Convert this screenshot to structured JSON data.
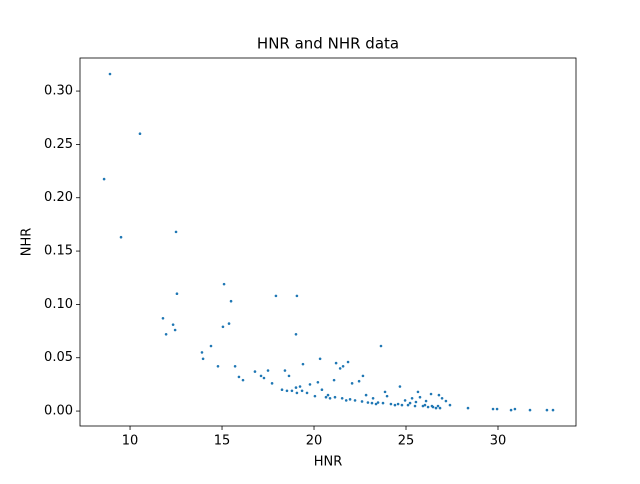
{
  "chart_data": {
    "type": "scatter",
    "title": "HNR and NHR data",
    "xlabel": "HNR",
    "ylabel": "NHR",
    "x": [
      8.91,
      8.59,
      10.54,
      9.51,
      12.5,
      12.55,
      11.79,
      11.96,
      12.34,
      12.45,
      15.11,
      15.49,
      15.38,
      15.05,
      14.4,
      13.91,
      13.97,
      14.78,
      15.71,
      15.92,
      16.14,
      17.93,
      19.07,
      19.02,
      19.4,
      16.79,
      17.12,
      17.5,
      17.28,
      17.72,
      18.42,
      18.64,
      18.26,
      18.53,
      18.8,
      19.02,
      19.24,
      19.07,
      19.78,
      20.21,
      20.33,
      20.43,
      20.65,
      20.87,
      21.09,
      21.2,
      21.42,
      21.58,
      21.85,
      21.53,
      21.75,
      22.07,
      22.23,
      22.45,
      22.66,
      22.93,
      23.15,
      23.37,
      23.64,
      23.86,
      23.97,
      24.18,
      24.4,
      24.67,
      24.78,
      24.95,
      25.11,
      25.33,
      25.49,
      25.65,
      25.76,
      25.92,
      26.09,
      26.2,
      26.36,
      26.47,
      26.63,
      26.79,
      26.85,
      26.96,
      27.17,
      27.39,
      28.37,
      29.73,
      29.95,
      30.71,
      30.92,
      31.74,
      32.66,
      32.99,
      20.05,
      20.76,
      21.14,
      21.96,
      22.61,
      23.48,
      23.75,
      24.57,
      25.22,
      25.54,
      26.03,
      26.41,
      26.74,
      22.83,
      23.21,
      19.62,
      19.35
    ],
    "series": [
      {
        "color": "#1f77b4",
        "values": [
          0.316,
          0.2175,
          0.26,
          0.163,
          0.168,
          0.11,
          0.087,
          0.072,
          0.081,
          0.076,
          0.119,
          0.103,
          0.082,
          0.079,
          0.061,
          0.055,
          0.049,
          0.042,
          0.042,
          0.032,
          0.029,
          0.108,
          0.108,
          0.072,
          0.044,
          0.037,
          0.033,
          0.038,
          0.031,
          0.026,
          0.038,
          0.033,
          0.02,
          0.019,
          0.019,
          0.022,
          0.023,
          0.017,
          0.025,
          0.027,
          0.049,
          0.02,
          0.013,
          0.012,
          0.029,
          0.045,
          0.04,
          0.042,
          0.046,
          0.012,
          0.01,
          0.026,
          0.01,
          0.028,
          0.033,
          0.008,
          0.0075,
          0.0066,
          0.061,
          0.018,
          0.014,
          0.0066,
          0.0056,
          0.023,
          0.0056,
          0.01,
          0.0056,
          0.012,
          0.0047,
          0.018,
          0.013,
          0.0047,
          0.0094,
          0.0038,
          0.016,
          0.0038,
          0.0028,
          0.015,
          0.0028,
          0.012,
          0.0094,
          0.0056,
          0.0028,
          0.0019,
          0.0019,
          0.0009,
          0.0019,
          0.0009,
          0.0009,
          0.0009,
          0.014,
          0.015,
          0.013,
          0.011,
          0.009,
          0.008,
          0.0075,
          0.0066,
          0.0075,
          0.0085,
          0.0056,
          0.0047,
          0.0047,
          0.015,
          0.012,
          0.017,
          0.019
        ]
      }
    ],
    "xlim": [
      7.28,
      34.24
    ],
    "ylim": [
      -0.014,
      0.331
    ],
    "xticks": [
      10,
      15,
      20,
      25,
      30
    ],
    "yticks": [
      {
        "value": 0,
        "label": "0.00"
      },
      {
        "value": 0.05,
        "label": "0.05"
      },
      {
        "value": 0.1,
        "label": "0.10"
      },
      {
        "value": 0.15,
        "label": "0.15"
      },
      {
        "value": 0.2,
        "label": "0.20"
      },
      {
        "value": 0.25,
        "label": "0.25"
      },
      {
        "value": 0.3,
        "label": "0.30"
      }
    ]
  }
}
